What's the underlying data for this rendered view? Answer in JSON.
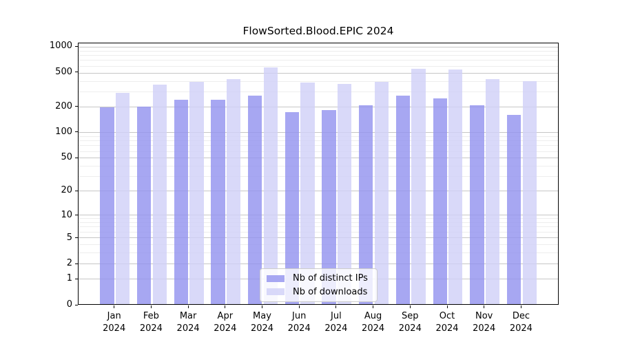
{
  "chart_data": {
    "type": "bar",
    "title": "FlowSorted.Blood.EPIC 2024",
    "categories": [
      "Jan",
      "Feb",
      "Mar",
      "Apr",
      "May",
      "Jun",
      "Jul",
      "Aug",
      "Sep",
      "Oct",
      "Nov",
      "Dec"
    ],
    "year_label": "2024",
    "series": [
      {
        "name": "Nb of distinct IPs",
        "color": "#9191ef",
        "values": [
          195,
          201,
          239,
          240,
          270,
          172,
          183,
          206,
          271,
          249,
          208,
          160
        ]
      },
      {
        "name": "Nb of downloads",
        "color": "#d0d0f7",
        "values": [
          288,
          360,
          388,
          420,
          580,
          385,
          368,
          390,
          552,
          547,
          418,
          399
        ]
      }
    ],
    "yscale": "log1p",
    "ylim": [
      0,
      1100
    ],
    "ytick_values": [
      0,
      1,
      2,
      5,
      10,
      20,
      50,
      100,
      200,
      500,
      1000
    ],
    "ytick_labels": [
      "0",
      "1",
      "2",
      "5",
      "10",
      "20",
      "50",
      "100",
      "200",
      "500",
      "1000"
    ],
    "minor_gridlines": [
      1,
      2,
      3,
      4,
      5,
      6,
      7,
      8,
      9,
      10,
      20,
      30,
      40,
      50,
      60,
      70,
      80,
      90,
      100,
      200,
      300,
      400,
      500,
      600,
      700,
      800,
      900,
      1000
    ],
    "grid": true,
    "legend_position": "bottom-center",
    "xlabel": "",
    "ylabel": ""
  },
  "colors": {
    "bar_ips": "#9191ef",
    "bar_downloads": "#d0d0f7",
    "grid_minor": "#ededed",
    "grid_major": "#c6c6c6",
    "axis": "#000000",
    "text": "#000000",
    "legend_border": "#cccccc"
  }
}
